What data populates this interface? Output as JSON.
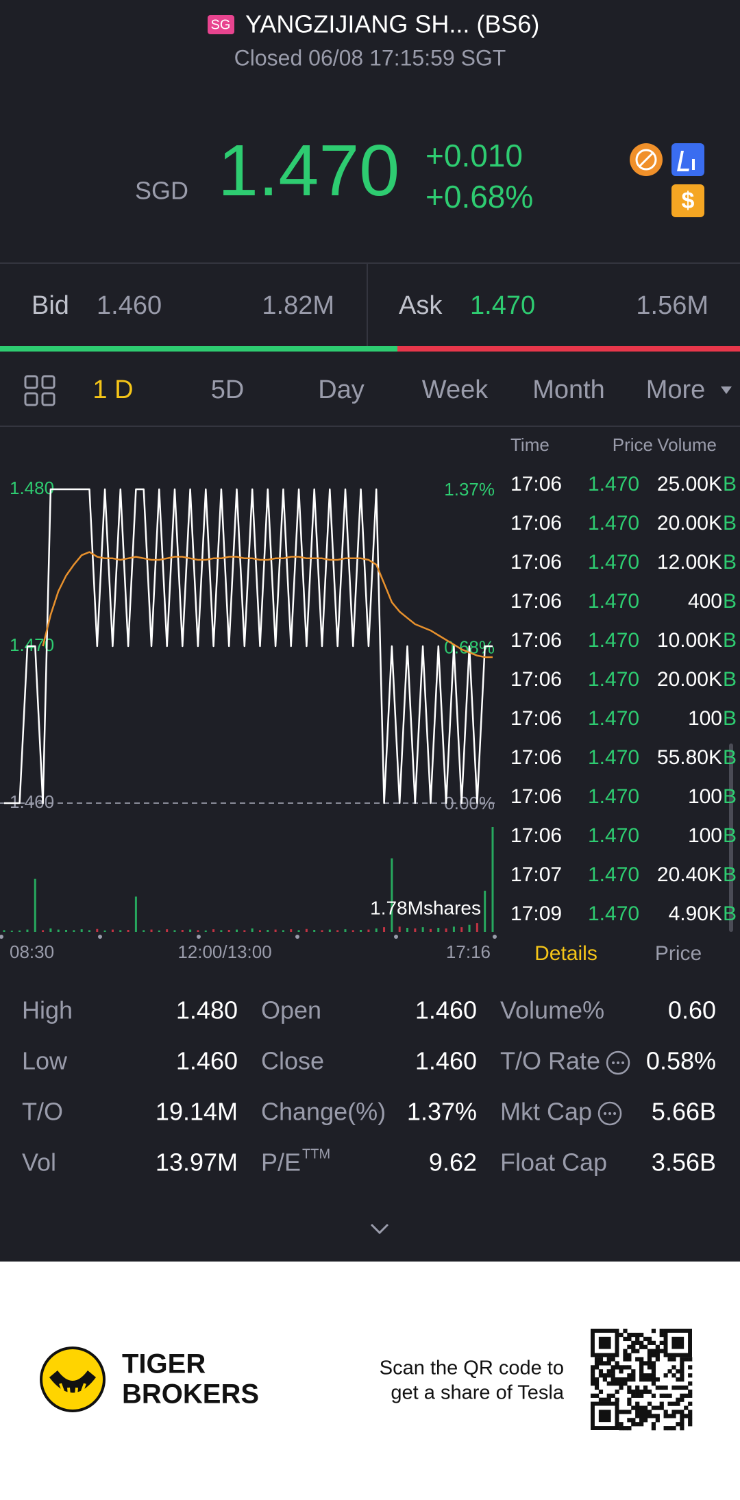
{
  "header": {
    "market": "SG",
    "title": "YANGZIJIANG SH... (BS6)",
    "status": "Closed 06/08 17:15:59 SGT"
  },
  "quote": {
    "currency": "SGD",
    "price": "1.470",
    "change": "+0.010",
    "change_pct": "+0.68%"
  },
  "bid_ask": {
    "bid_label": "Bid",
    "bid_price": "1.460",
    "bid_size": "1.82M",
    "ask_label": "Ask",
    "ask_price": "1.470",
    "ask_size": "1.56M"
  },
  "tabs": {
    "items": [
      "1 D",
      "5D",
      "Day",
      "Week",
      "Month",
      "More"
    ],
    "active": 0
  },
  "chart": {
    "type": "line",
    "ylim": [
      1.46,
      1.48
    ],
    "yticks": [
      {
        "value": 1.46,
        "label": "1.460"
      },
      {
        "value": 1.47,
        "label": "1.470"
      },
      {
        "value": 1.48,
        "label": "1.480"
      }
    ],
    "y2lim": [
      0,
      1.37
    ],
    "y2ticks": [
      {
        "value": 0,
        "label": "0.00%"
      },
      {
        "value": 0.68,
        "label": "0.68%"
      },
      {
        "value": 1.37,
        "label": "1.37%"
      }
    ],
    "x_labels": [
      "08:30",
      "12:00/13:00",
      "17:16"
    ],
    "series": [
      {
        "name": "Price",
        "color": "#ffffff",
        "values": [
          1.46,
          1.46,
          1.46,
          1.47,
          1.47,
          1.46,
          1.48,
          1.48,
          1.48,
          1.48,
          1.48,
          1.48,
          1.47,
          1.48,
          1.47,
          1.48,
          1.47,
          1.48,
          1.48,
          1.47,
          1.48,
          1.47,
          1.48,
          1.47,
          1.48,
          1.47,
          1.48,
          1.47,
          1.48,
          1.47,
          1.48,
          1.47,
          1.48,
          1.47,
          1.48,
          1.47,
          1.48,
          1.47,
          1.48,
          1.47,
          1.48,
          1.47,
          1.48,
          1.47,
          1.48,
          1.47,
          1.48,
          1.47,
          1.48,
          1.46,
          1.47,
          1.46,
          1.47,
          1.46,
          1.47,
          1.46,
          1.47,
          1.46,
          1.47,
          1.46,
          1.47,
          1.46,
          1.47,
          1.47
        ]
      },
      {
        "name": "Average",
        "color": "#e8912d",
        "values": [
          null,
          null,
          null,
          null,
          null,
          1.47,
          1.472,
          1.4735,
          1.4745,
          1.4752,
          1.4758,
          1.476,
          1.4757,
          1.4756,
          1.4756,
          1.4755,
          1.4756,
          1.4757,
          1.4756,
          1.4755,
          1.4755,
          1.4756,
          1.4757,
          1.4757,
          1.4756,
          1.4755,
          1.4755,
          1.4756,
          1.4756,
          1.4757,
          1.4757,
          1.4756,
          1.4756,
          1.4755,
          1.4755,
          1.4756,
          1.4756,
          1.4757,
          1.4757,
          1.4756,
          1.4756,
          1.4756,
          1.4755,
          1.4755,
          1.4756,
          1.4756,
          1.4756,
          1.4755,
          1.4752,
          1.474,
          1.4728,
          1.4722,
          1.4718,
          1.4714,
          1.4712,
          1.471,
          1.4707,
          1.4704,
          1.4701,
          1.4698,
          1.4696,
          1.4694,
          1.4693,
          1.4693
        ]
      }
    ],
    "volume": {
      "max": {
        "value": 1780000,
        "label": "1.78Mshares"
      },
      "values": [
        30000,
        20000,
        25000,
        40000,
        900000,
        30000,
        60000,
        40000,
        35000,
        30000,
        45000,
        30000,
        50000,
        25000,
        40000,
        30000,
        35000,
        600000,
        30000,
        40000,
        25000,
        45000,
        30000,
        35000,
        40000,
        30000,
        25000,
        45000,
        30000,
        35000,
        40000,
        30000,
        60000,
        30000,
        35000,
        40000,
        30000,
        45000,
        30000,
        50000,
        35000,
        30000,
        40000,
        30000,
        45000,
        30000,
        35000,
        40000,
        60000,
        80000,
        1250000,
        90000,
        70000,
        60000,
        80000,
        50000,
        70000,
        60000,
        90000,
        80000,
        120000,
        150000,
        700000,
        1780000
      ]
    }
  },
  "trades": {
    "headers": [
      "Time",
      "Price",
      "Volume"
    ],
    "rows": [
      [
        "17:06",
        "1.470",
        "25.00K",
        "B"
      ],
      [
        "17:06",
        "1.470",
        "20.00K",
        "B"
      ],
      [
        "17:06",
        "1.470",
        "12.00K",
        "B"
      ],
      [
        "17:06",
        "1.470",
        "400",
        "B"
      ],
      [
        "17:06",
        "1.470",
        "10.00K",
        "B"
      ],
      [
        "17:06",
        "1.470",
        "20.00K",
        "B"
      ],
      [
        "17:06",
        "1.470",
        "100",
        "B"
      ],
      [
        "17:06",
        "1.470",
        "55.80K",
        "B"
      ],
      [
        "17:06",
        "1.470",
        "100",
        "B"
      ],
      [
        "17:06",
        "1.470",
        "100",
        "B"
      ],
      [
        "17:07",
        "1.470",
        "20.40K",
        "B"
      ],
      [
        "17:09",
        "1.470",
        "4.90K",
        "B"
      ]
    ],
    "tabs": [
      "Details",
      "Price"
    ]
  },
  "stats": [
    [
      {
        "label": "High",
        "value": "1.480"
      },
      {
        "label": "Open",
        "value": "1.460"
      },
      {
        "label": "Volume%",
        "value": "0.60"
      }
    ],
    [
      {
        "label": "Low",
        "value": "1.460"
      },
      {
        "label": "Close",
        "value": "1.460"
      },
      {
        "label": "T/O Rate",
        "value": "0.58%",
        "info": true
      }
    ],
    [
      {
        "label": "T/O",
        "value": "19.14M"
      },
      {
        "label": "Change(%)",
        "value": "1.37%"
      },
      {
        "label": "Mkt Cap",
        "value": "5.66B",
        "info": true
      }
    ],
    [
      {
        "label": "Vol",
        "value": "13.97M"
      },
      {
        "label": "P/E",
        "sup": "TTM",
        "value": "9.62"
      },
      {
        "label": "Float Cap",
        "value": "3.56B"
      }
    ]
  ],
  "footer": {
    "brand": [
      "TIGER",
      "BROKERS"
    ],
    "promo": [
      "Scan the QR code to",
      "get a share of Tesla"
    ]
  }
}
